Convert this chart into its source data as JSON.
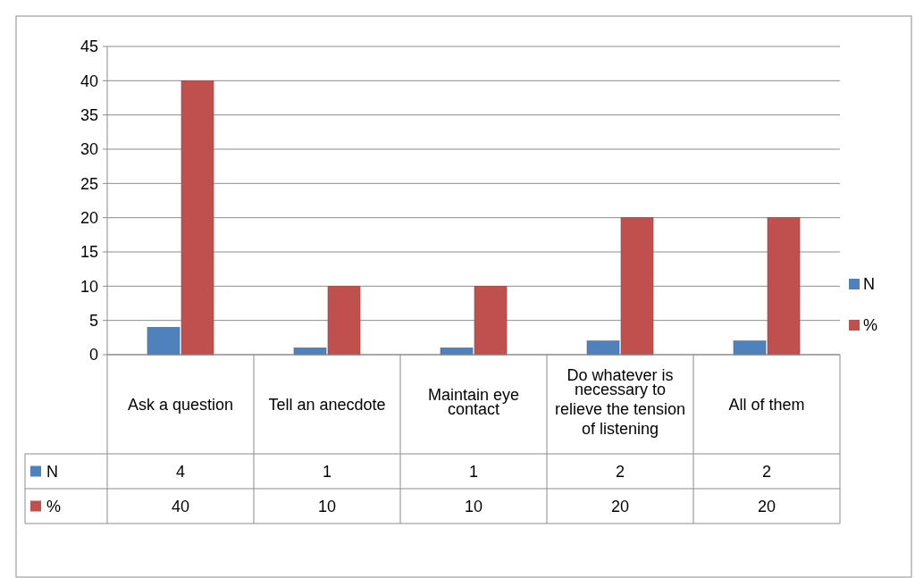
{
  "chart_data": {
    "type": "bar",
    "categories": [
      "Ask a question",
      "Tell an anecdote",
      "Maintain eye contact",
      "Do whatever is necessary to relieve the tension of listening",
      "All of them"
    ],
    "series": [
      {
        "name": "N",
        "color": "#4f81bd",
        "values": [
          4,
          1,
          1,
          2,
          2
        ]
      },
      {
        "name": "%",
        "color": "#c0504d",
        "values": [
          40,
          10,
          10,
          20,
          20
        ]
      }
    ],
    "ylim": [
      0,
      45
    ],
    "yticks": [
      0,
      5,
      10,
      15,
      20,
      25,
      30,
      35,
      40,
      45
    ],
    "grid": "y",
    "legend": "right",
    "data_labels": true
  }
}
